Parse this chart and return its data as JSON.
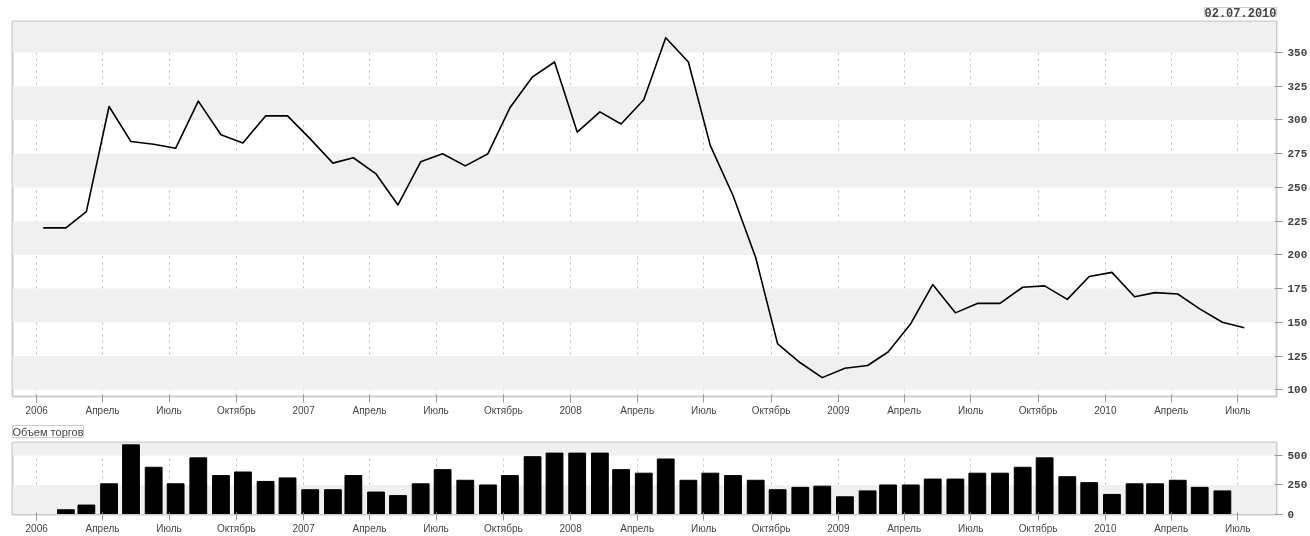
{
  "chart_data": [
    {
      "type": "line",
      "subtitle": "02.07.2010",
      "color": "#000000",
      "x": [
        "2006-01-10",
        "2006-02-10",
        "2006-03-10",
        "2006-04-10",
        "2006-05-10",
        "2006-06-10",
        "2006-07-10",
        "2006-08-10",
        "2006-09-10",
        "2006-10-10",
        "2006-11-10",
        "2006-12-10",
        "2007-01-10",
        "2007-02-10",
        "2007-03-10",
        "2007-04-10",
        "2007-05-10",
        "2007-06-10",
        "2007-07-10",
        "2007-08-10",
        "2007-09-10",
        "2007-10-10",
        "2007-11-10",
        "2007-12-10",
        "2008-01-10",
        "2008-02-10",
        "2008-03-10",
        "2008-04-10",
        "2008-05-10",
        "2008-06-10",
        "2008-07-10",
        "2008-08-10",
        "2008-09-10",
        "2008-10-10",
        "2008-11-10",
        "2008-12-10",
        "2009-01-10",
        "2009-02-10",
        "2009-03-10",
        "2009-04-10",
        "2009-05-10",
        "2009-06-10",
        "2009-07-10",
        "2009-08-10",
        "2009-09-10",
        "2009-10-10",
        "2009-11-10",
        "2009-12-10",
        "2010-01-10",
        "2010-02-10",
        "2010-03-10",
        "2010-04-10",
        "2010-05-10",
        "2010-06-10",
        "2010-07-10"
      ],
      "values": [
        220,
        220,
        232,
        310,
        284,
        282,
        279,
        314,
        289,
        283,
        303,
        303,
        286,
        268,
        272,
        260,
        237,
        269,
        275,
        266,
        275,
        309,
        332,
        343,
        291,
        306,
        297,
        315,
        361,
        343,
        281,
        244,
        198,
        134,
        120,
        109,
        116,
        118,
        128,
        149,
        178,
        157,
        164,
        164,
        176,
        177,
        167,
        184,
        187,
        169,
        172,
        171,
        160,
        150,
        146
      ],
      "xlim": [
        "2005-11-29",
        "2010-08-23"
      ],
      "xticks": [
        {
          "value": "2006-01-01",
          "label": "2006"
        },
        {
          "value": "2006-04-01",
          "label": "Апрель"
        },
        {
          "value": "2006-07-01",
          "label": "Июль"
        },
        {
          "value": "2006-10-01",
          "label": "Октябрь"
        },
        {
          "value": "2007-01-01",
          "label": "2007"
        },
        {
          "value": "2007-04-01",
          "label": "Апрель"
        },
        {
          "value": "2007-07-01",
          "label": "Июль"
        },
        {
          "value": "2007-10-01",
          "label": "Октябрь"
        },
        {
          "value": "2008-01-01",
          "label": "2008"
        },
        {
          "value": "2008-04-01",
          "label": "Апрель"
        },
        {
          "value": "2008-07-01",
          "label": "Июль"
        },
        {
          "value": "2008-10-01",
          "label": "Октябрь"
        },
        {
          "value": "2009-01-01",
          "label": "2009"
        },
        {
          "value": "2009-04-01",
          "label": "Апрель"
        },
        {
          "value": "2009-07-01",
          "label": "Июль"
        },
        {
          "value": "2009-10-01",
          "label": "Октябрь"
        },
        {
          "value": "2010-01-01",
          "label": "2010"
        },
        {
          "value": "2010-04-01",
          "label": "Апрель"
        },
        {
          "value": "2010-07-01",
          "label": "Июль"
        }
      ],
      "ylim": [
        95,
        373
      ],
      "yticks": [
        100,
        125,
        150,
        175,
        200,
        225,
        250,
        275,
        300,
        325,
        350
      ],
      "grid": true,
      "marker": "none",
      "line_style": "solid"
    },
    {
      "type": "bar",
      "title": "Объем торгов",
      "color": "#000000",
      "x": [
        "2006-02-10",
        "2006-03-10",
        "2006-04-10",
        "2006-05-10",
        "2006-06-10",
        "2006-07-10",
        "2006-08-10",
        "2006-09-10",
        "2006-10-10",
        "2006-11-10",
        "2006-12-10",
        "2007-01-10",
        "2007-02-10",
        "2007-03-10",
        "2007-04-10",
        "2007-05-10",
        "2007-06-10",
        "2007-07-10",
        "2007-08-10",
        "2007-09-10",
        "2007-10-10",
        "2007-11-10",
        "2007-12-10",
        "2008-01-10",
        "2008-02-10",
        "2008-03-10",
        "2008-04-10",
        "2008-05-10",
        "2008-06-10",
        "2008-07-10",
        "2008-08-10",
        "2008-09-10",
        "2008-10-10",
        "2008-11-10",
        "2008-12-10",
        "2009-01-10",
        "2009-02-10",
        "2009-03-10",
        "2009-04-10",
        "2009-05-10",
        "2009-06-10",
        "2009-07-10",
        "2009-08-10",
        "2009-09-10",
        "2009-10-10",
        "2009-11-10",
        "2009-12-10",
        "2010-01-10",
        "2010-02-10",
        "2010-03-10",
        "2010-04-10",
        "2010-05-10",
        "2010-06-10"
      ],
      "values": [
        40,
        80,
        260,
        590,
        400,
        260,
        480,
        330,
        360,
        280,
        310,
        210,
        210,
        330,
        190,
        160,
        260,
        380,
        290,
        250,
        330,
        490,
        520,
        520,
        520,
        380,
        350,
        470,
        290,
        350,
        330,
        290,
        210,
        230,
        240,
        150,
        200,
        250,
        250,
        300,
        300,
        350,
        350,
        400,
        480,
        320,
        270,
        170,
        260,
        260,
        290,
        230,
        200
      ],
      "xlim": [
        "2005-11-29",
        "2010-08-23"
      ],
      "xticks": [
        {
          "value": "2006-01-01",
          "label": "2006"
        },
        {
          "value": "2006-04-01",
          "label": "Апрель"
        },
        {
          "value": "2006-07-01",
          "label": "Июль"
        },
        {
          "value": "2006-10-01",
          "label": "Октябрь"
        },
        {
          "value": "2007-01-01",
          "label": "2007"
        },
        {
          "value": "2007-04-01",
          "label": "Апрель"
        },
        {
          "value": "2007-07-01",
          "label": "Июль"
        },
        {
          "value": "2007-10-01",
          "label": "Октябрь"
        },
        {
          "value": "2008-01-01",
          "label": "2008"
        },
        {
          "value": "2008-04-01",
          "label": "Апрель"
        },
        {
          "value": "2008-07-01",
          "label": "Июль"
        },
        {
          "value": "2008-10-01",
          "label": "Октябрь"
        },
        {
          "value": "2009-01-01",
          "label": "2009"
        },
        {
          "value": "2009-04-01",
          "label": "Апрель"
        },
        {
          "value": "2009-07-01",
          "label": "Июль"
        },
        {
          "value": "2009-10-01",
          "label": "Октябрь"
        },
        {
          "value": "2010-01-01",
          "label": "2010"
        },
        {
          "value": "2010-04-01",
          "label": "Апрель"
        },
        {
          "value": "2010-07-01",
          "label": "Июль"
        }
      ],
      "ylim": [
        0,
        610
      ],
      "yticks": [
        0,
        250,
        500
      ],
      "bands": [
        {
          "axis": "y",
          "from": 0,
          "to": 250,
          "color": "#f0f0f0"
        },
        {
          "axis": "y",
          "from": 500,
          "to": 610,
          "color": "#f0f0f0"
        }
      ],
      "grid": "x"
    }
  ]
}
